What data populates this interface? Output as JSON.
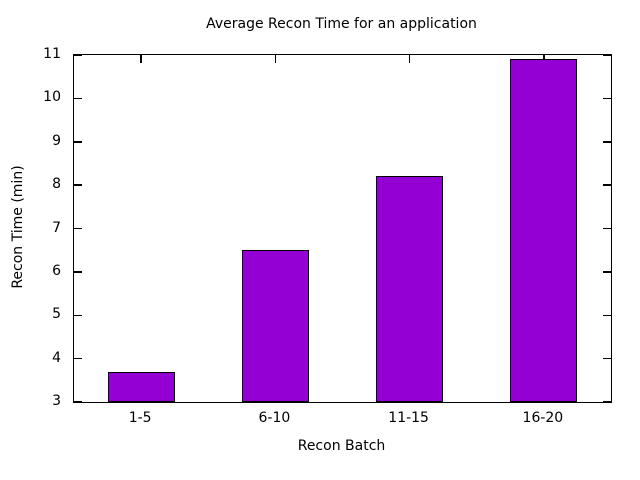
{
  "chart_data": {
    "type": "bar",
    "title": "Average Recon Time for an application",
    "xlabel": "Recon Batch",
    "ylabel": "Recon Time (min)",
    "categories": [
      "1-5",
      "6-10",
      "11-15",
      "16-20"
    ],
    "values": [
      3.7,
      6.5,
      8.2,
      10.9
    ],
    "ylim": [
      3,
      11
    ],
    "yticks": [
      3,
      4,
      5,
      6,
      7,
      8,
      9,
      10,
      11
    ],
    "grid": false,
    "legend_position": "none",
    "colors": {
      "bar_fill": "#9400D3",
      "bar_border": "#000000",
      "axis": "#000000",
      "text": "#000000",
      "background": "#FFFFFF"
    }
  }
}
